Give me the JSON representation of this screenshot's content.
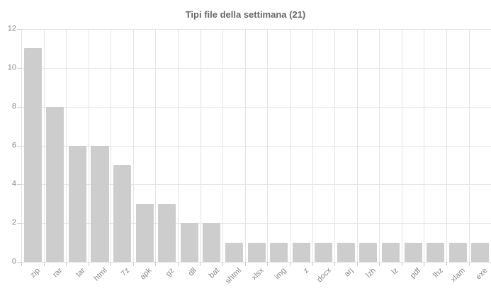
{
  "chart_data": {
    "type": "bar",
    "title": "Tipi file della settimana (21)",
    "categories": [
      "zip",
      "rar",
      "tar",
      "html",
      "7z",
      "apk",
      "gz",
      "dll",
      "bat",
      "shtml",
      "xlsx",
      "img",
      "z",
      "docx",
      "arj",
      "lzh",
      "lz",
      "pdf",
      "lhz",
      "xlam",
      "exe"
    ],
    "values": [
      11,
      8,
      6,
      6,
      5,
      3,
      3,
      2,
      2,
      1,
      1,
      1,
      1,
      1,
      1,
      1,
      1,
      1,
      1,
      1,
      1
    ],
    "xlabel": "",
    "ylabel": "",
    "ylim": [
      0,
      12
    ],
    "ytick_step": 2,
    "yticks": [
      0,
      2,
      4,
      6,
      8,
      10,
      12
    ],
    "grid": true,
    "legend": false,
    "x_label_rotation_deg": -45,
    "colors": {
      "bar": "#cdcdcd",
      "grid": "#e3e3e3",
      "tick": "#cccccc",
      "axis_label": "#888888",
      "title": "#666666",
      "background": "#ffffff"
    }
  }
}
